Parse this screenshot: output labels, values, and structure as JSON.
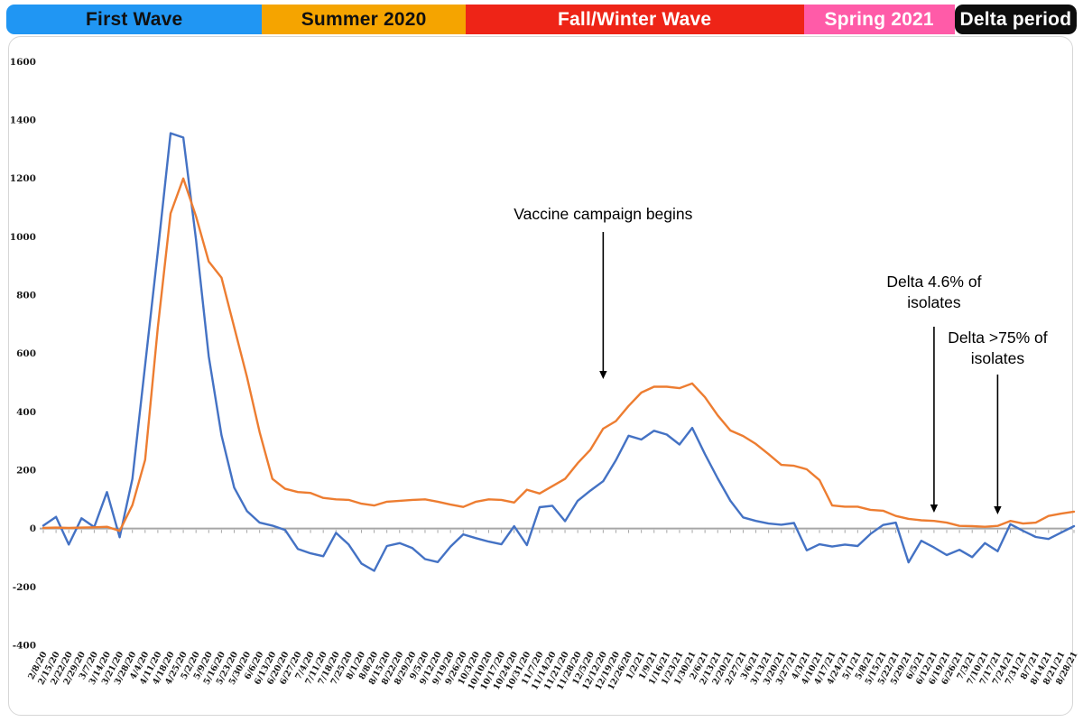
{
  "banner": {
    "segments": [
      {
        "label": "First Wave",
        "color": "#2096F3",
        "text_color": "#101010",
        "width_pct": 23.9,
        "rounded": false
      },
      {
        "label": "Summer 2020",
        "color": "#F5A400",
        "text_color": "#101010",
        "width_pct": 19.0,
        "rounded": false
      },
      {
        "label": "Fall/Winter Wave",
        "color": "#EE2417",
        "text_color": "#ffffff",
        "width_pct": 31.6,
        "rounded": false
      },
      {
        "label": "Spring 2021",
        "color": "#FF5BA8",
        "text_color": "#ffffff",
        "width_pct": 14.1,
        "rounded": false
      },
      {
        "label": "Delta period",
        "color": "#0d0d0d",
        "text_color": "#ffffff",
        "width_pct": 11.4,
        "rounded": true
      }
    ]
  },
  "chart_data": {
    "type": "line",
    "title": "",
    "xlabel": "",
    "ylabel": "",
    "legend": "none",
    "grid": "zero-axis-only",
    "ylim": [
      -400,
      1600
    ],
    "y_ticks": [
      1600,
      1400,
      1200,
      1000,
      800,
      600,
      400,
      200,
      0,
      -200,
      -400
    ],
    "x_label_rotation": -62,
    "categories": [
      "2/8/20",
      "2/15/20",
      "2/22/20",
      "2/29/20",
      "3/7/20",
      "3/14/20",
      "3/21/20",
      "3/28/20",
      "4/4/20",
      "4/11/20",
      "4/18/20",
      "4/25/20",
      "5/2/20",
      "5/9/20",
      "5/16/20",
      "5/23/20",
      "5/30/20",
      "6/6/20",
      "6/13/20",
      "6/20/20",
      "6/27/20",
      "7/4/20",
      "7/11/20",
      "7/18/20",
      "7/25/20",
      "8/1/20",
      "8/8/20",
      "8/15/20",
      "8/22/20",
      "8/29/20",
      "9/5/20",
      "9/12/20",
      "9/19/20",
      "9/26/20",
      "10/3/20",
      "10/10/20",
      "10/17/20",
      "10/24/20",
      "10/31/20",
      "11/7/20",
      "11/14/20",
      "11/21/20",
      "11/28/20",
      "12/5/20",
      "12/12/20",
      "12/19/20",
      "12/26/20",
      "1/2/21",
      "1/9/21",
      "1/16/21",
      "1/23/21",
      "1/30/21",
      "2/6/21",
      "2/13/21",
      "2/20/21",
      "2/27/21",
      "3/6/21",
      "3/13/21",
      "3/20/21",
      "3/27/21",
      "4/3/21",
      "4/10/21",
      "4/17/21",
      "4/24/21",
      "5/1/21",
      "5/8/21",
      "5/15/21",
      "5/22/21",
      "5/29/21",
      "6/5/21",
      "6/12/21",
      "6/19/21",
      "6/26/21",
      "7/3/21",
      "7/10/21",
      "7/17/21",
      "7/24/21",
      "7/31/21",
      "8/7/21",
      "8/14/21",
      "8/21/21",
      "8/28/21"
    ],
    "series": [
      {
        "name": "blue",
        "color": "#4472C4",
        "values": [
          10,
          40,
          -55,
          35,
          5,
          125,
          -30,
          170,
          560,
          950,
          1355,
          1340,
          990,
          590,
          320,
          140,
          60,
          20,
          10,
          -5,
          -70,
          -85,
          -95,
          -15,
          -55,
          -120,
          -145,
          -60,
          -50,
          -67,
          -105,
          -115,
          -62,
          -20,
          -33,
          -45,
          -54,
          8,
          -57,
          73,
          78,
          25,
          95,
          130,
          162,
          234,
          318,
          305,
          335,
          322,
          288,
          345,
          255,
          172,
          95,
          38,
          26,
          17,
          13,
          19,
          -75,
          -54,
          -62,
          -55,
          -60,
          -19,
          12,
          20,
          -116,
          -42,
          -65,
          -91,
          -73,
          -98,
          -50,
          -78,
          15,
          -8,
          -29,
          -36,
          -14,
          8
        ]
      },
      {
        "name": "orange",
        "color": "#ED7D31",
        "values": [
          2,
          3,
          2,
          3,
          4,
          6,
          -8,
          80,
          235,
          690,
          1080,
          1200,
          1070,
          915,
          860,
          690,
          520,
          330,
          170,
          136,
          125,
          122,
          105,
          100,
          98,
          85,
          79,
          92,
          95,
          98,
          100,
          92,
          82,
          74,
          92,
          100,
          98,
          89,
          133,
          120,
          145,
          170,
          224,
          270,
          342,
          368,
          420,
          466,
          486,
          486,
          481,
          497,
          450,
          388,
          336,
          317,
          290,
          255,
          218,
          215,
          203,
          166,
          79,
          75,
          75,
          64,
          61,
          43,
          33,
          28,
          26,
          20,
          9,
          8,
          6,
          9,
          26,
          17,
          20,
          43,
          51,
          58
        ]
      }
    ],
    "annotations": [
      {
        "name": "vaccine-campaign",
        "lines": [
          "Vaccine campaign begins"
        ],
        "x_category": "12/12/20",
        "text_y": 243,
        "arrow_from_y": 257,
        "arrow_tip_y": 420
      },
      {
        "name": "delta-4-6-pct",
        "lines": [
          "Delta 4.6% of",
          "isolates"
        ],
        "x_category": "6/12/21",
        "text_y": 318,
        "arrow_from_y": 362,
        "arrow_tip_y": 568
      },
      {
        "name": "delta-gt-75-pct",
        "lines": [
          "Delta >75% of",
          "isolates"
        ],
        "x_category": "7/17/21",
        "text_y": 380,
        "arrow_from_y": 415,
        "arrow_tip_y": 570
      }
    ],
    "axis_color": "#a6a6a6"
  }
}
